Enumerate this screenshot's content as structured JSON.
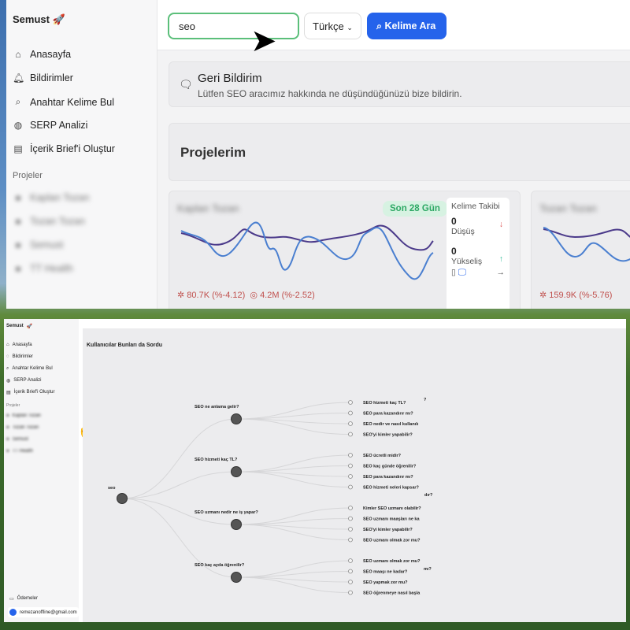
{
  "app": {
    "brand": "Semust",
    "brand_icon": "rocket-icon"
  },
  "sidebar": {
    "items": [
      {
        "label": "Anasayfa",
        "icon": "home-icon"
      },
      {
        "label": "Bildirimler",
        "icon": "bell-icon"
      },
      {
        "label": "Anahtar Kelime Bul",
        "icon": "search-icon"
      },
      {
        "label": "SERP Analizi",
        "icon": "globe-icon"
      },
      {
        "label": "İçerik Brief'i Oluştur",
        "icon": "document-icon"
      }
    ],
    "projects_label": "Projeler",
    "projects": [
      "Kaplan Tozan",
      "Tozan Tozan",
      "Semust",
      "TT Health"
    ],
    "payments": "Ödemeler",
    "user_email": "remezanoffline@gmail.com"
  },
  "toolbar": {
    "search_value": "seo",
    "language": "Türkçe",
    "search_button": "Kelime Ara"
  },
  "feedback": {
    "title": "Geri Bildirim",
    "text": "Lütfen SEO aracımız hakkında ne düşündüğünüzü bize bildirin."
  },
  "projects_title": "Projelerim",
  "project_cards": [
    {
      "name": "Kaplan Tozan",
      "period": "Son 28 Gün",
      "stat1": "80.7K (%-4.12)",
      "stat2": "4.2M (%-2.52)",
      "tracking": {
        "title": "Kelime Takibi",
        "down_count": "0",
        "down_label": "Düşüş",
        "up_count": "0",
        "up_label": "Yükseliş"
      }
    },
    {
      "name": "Tozan Tozan",
      "stat1": "159.9K (%-5.76)"
    }
  ],
  "colors": {
    "accent": "#2563eb",
    "success": "#2da864",
    "line1": "#4a7fd0",
    "line2": "#4b3a8a"
  },
  "tree": {
    "title": "Kullanıcılar Bunları da Sordu",
    "root": "seo",
    "branches": [
      {
        "label": "SEO ne anlama gelir?",
        "leaves": [
          "SEO hizmeti kaç TL?",
          "SEO para kazandırır mı?",
          "SEO nedir ve nasıl kullanılı",
          "SEO'yi kimler yapabilir?"
        ]
      },
      {
        "label": "SEO hizmeti kaç TL?",
        "leaves": [
          "SEO ücretli midir?",
          "SEO kaç günde öğrenilir?",
          "SEO para kazandırır mı?",
          "SEO hizmeti neleri kapsar?"
        ]
      },
      {
        "label": "SEO uzmanı nedir ne iş yapar?",
        "leaves": [
          "Kimler SEO uzmanı olabilir?",
          "SEO uzmanı maaşları ne ka",
          "SEO'yi kimler yapabilir?",
          "SEO uzmanı olmak zor mu?"
        ]
      },
      {
        "label": "SEO kaç ayda öğrenilir?",
        "leaves": [
          "SEO uzmanı olmak zor mu?",
          "SEO maaşı ne kadar?",
          "SEO yapmak zor mu?",
          "SEO öğrenmeye nasıl başla"
        ]
      }
    ],
    "overflow": [
      "?",
      "dır?",
      "mı?"
    ]
  }
}
